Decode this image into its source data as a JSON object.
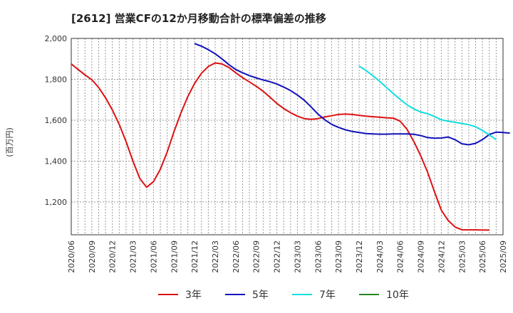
{
  "chart_data": {
    "type": "line",
    "title": "[2612]  営業CFの12か月移動合計の標準偏差の推移",
    "ylabel": "(百万円)",
    "ylim": [
      1040,
      2000
    ],
    "yticks": [
      {
        "value": 2000,
        "label": "2,000"
      },
      {
        "value": 1800,
        "label": "1,800"
      },
      {
        "value": 1600,
        "label": "1,600"
      },
      {
        "value": 1400,
        "label": "1,400"
      },
      {
        "value": 1200,
        "label": "1,200"
      }
    ],
    "xlim": [
      0,
      63
    ],
    "xticks": [
      {
        "index": 0,
        "label": "2020/06"
      },
      {
        "index": 3,
        "label": "2020/09"
      },
      {
        "index": 6,
        "label": "2020/12"
      },
      {
        "index": 9,
        "label": "2021/03"
      },
      {
        "index": 12,
        "label": "2021/06"
      },
      {
        "index": 15,
        "label": "2021/09"
      },
      {
        "index": 18,
        "label": "2021/12"
      },
      {
        "index": 21,
        "label": "2022/03"
      },
      {
        "index": 24,
        "label": "2022/06"
      },
      {
        "index": 27,
        "label": "2022/09"
      },
      {
        "index": 30,
        "label": "2022/12"
      },
      {
        "index": 33,
        "label": "2023/03"
      },
      {
        "index": 36,
        "label": "2023/06"
      },
      {
        "index": 39,
        "label": "2023/09"
      },
      {
        "index": 42,
        "label": "2023/12"
      },
      {
        "index": 45,
        "label": "2024/03"
      },
      {
        "index": 48,
        "label": "2024/06"
      },
      {
        "index": 51,
        "label": "2024/09"
      },
      {
        "index": 54,
        "label": "2024/12"
      },
      {
        "index": 57,
        "label": "2025/03"
      },
      {
        "index": 60,
        "label": "2025/06"
      },
      {
        "index": 63,
        "label": "2025/09"
      }
    ],
    "grid": true,
    "legend_position": "bottom",
    "series": [
      {
        "name": "3年",
        "color": "#dd1111",
        "start_index": 0,
        "values": [
          1875,
          1848,
          1822,
          1798,
          1760,
          1710,
          1650,
          1580,
          1495,
          1400,
          1315,
          1272,
          1300,
          1360,
          1445,
          1545,
          1635,
          1715,
          1780,
          1830,
          1863,
          1880,
          1875,
          1858,
          1832,
          1808,
          1787,
          1766,
          1742,
          1712,
          1682,
          1657,
          1637,
          1620,
          1608,
          1604,
          1608,
          1616,
          1622,
          1628,
          1630,
          1628,
          1624,
          1620,
          1617,
          1615,
          1612,
          1610,
          1595,
          1555,
          1495,
          1425,
          1345,
          1250,
          1160,
          1110,
          1078,
          1064,
          1064,
          1064,
          1063,
          1063
        ]
      },
      {
        "name": "5年",
        "color": "#1111bb",
        "start_index": 18,
        "values": [
          1975,
          1962,
          1945,
          1925,
          1900,
          1872,
          1848,
          1832,
          1818,
          1807,
          1797,
          1788,
          1777,
          1762,
          1745,
          1723,
          1698,
          1665,
          1630,
          1602,
          1580,
          1565,
          1553,
          1545,
          1540,
          1535,
          1533,
          1532,
          1532,
          1533,
          1533,
          1533,
          1531,
          1525,
          1515,
          1512,
          1513,
          1518,
          1505,
          1485,
          1480,
          1487,
          1505,
          1530,
          1542,
          1540,
          1537
        ]
      },
      {
        "name": "7年",
        "color": "#11dddd",
        "start_index": 42,
        "values": [
          1865,
          1843,
          1818,
          1790,
          1760,
          1730,
          1702,
          1675,
          1655,
          1640,
          1632,
          1618,
          1602,
          1595,
          1590,
          1584,
          1578,
          1568,
          1550,
          1528,
          1505
        ]
      },
      {
        "name": "10年",
        "color": "#228822",
        "start_index": 0,
        "values": []
      }
    ]
  }
}
